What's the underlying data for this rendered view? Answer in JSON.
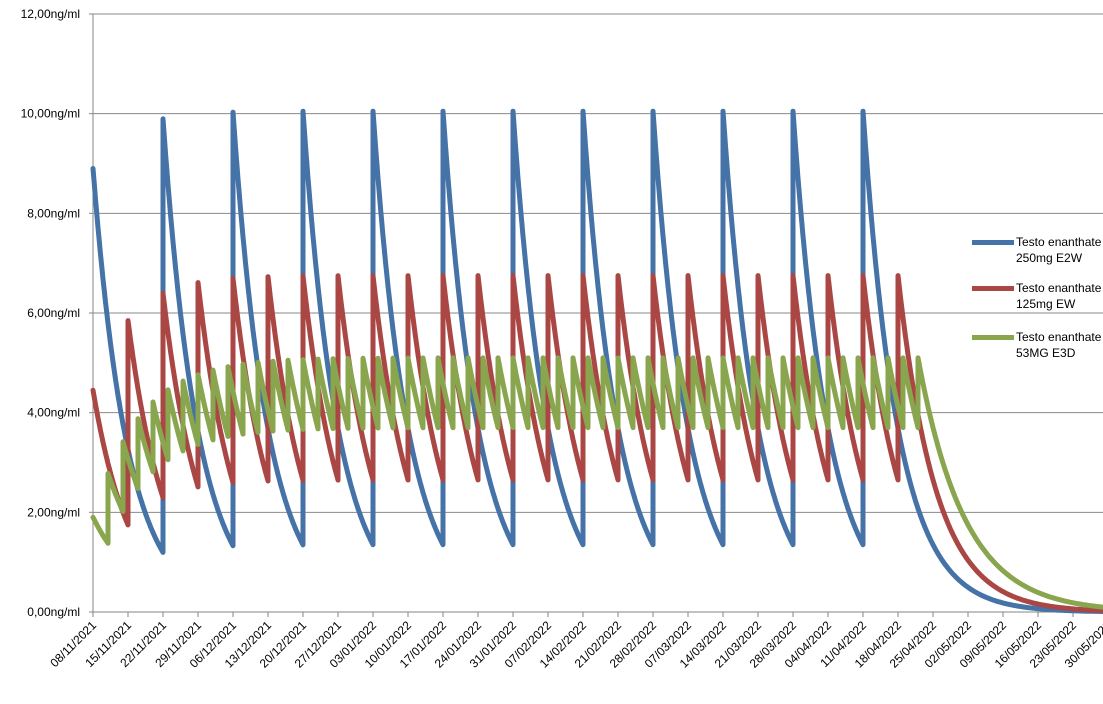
{
  "chart_data": {
    "type": "line",
    "title": "",
    "xlabel": "",
    "ylabel": "",
    "ylim": [
      0,
      12
    ],
    "y_ticks": [
      "0,00ng/ml",
      "2,00ng/ml",
      "4,00ng/ml",
      "6,00ng/ml",
      "8,00ng/ml",
      "10,00ng/ml",
      "12,00ng/ml"
    ],
    "y_tick_values": [
      0,
      2,
      4,
      6,
      8,
      10,
      12
    ],
    "x_range_days": [
      0,
      203
    ],
    "x_ticks": [
      "08/11/2021",
      "15/11/2021",
      "22/11/2021",
      "29/11/2021",
      "06/12/2021",
      "13/12/2021",
      "20/12/2021",
      "27/12/2021",
      "03/01/2022",
      "10/01/2022",
      "17/01/2022",
      "24/01/2022",
      "31/01/2022",
      "07/02/2022",
      "14/02/2022",
      "21/02/2022",
      "28/02/2022",
      "07/03/2022",
      "14/03/2022",
      "21/03/2022",
      "28/03/2022",
      "04/04/2022",
      "11/04/2022",
      "18/04/2022",
      "25/04/2022",
      "02/05/2022",
      "09/05/2022",
      "16/05/2022",
      "23/05/2022",
      "30/05/2022"
    ],
    "grid": "horizontal",
    "legend_position": "right",
    "series": [
      {
        "name": "Testo enanthate 250mg E2W",
        "legend_lines": [
          "Testo enanthate",
          "250mg E2W"
        ],
        "color": "#4572A7",
        "interval_days": 14,
        "last_dose_day": 154,
        "first_value": 8.9,
        "dose_increment": 8.7,
        "steady_peak": 10.05,
        "steady_trough": 1.35
      },
      {
        "name": "Testo enanthate 125mg EW",
        "legend_lines": [
          "Testo enanthate",
          "125mg EW"
        ],
        "color": "#AA4643",
        "interval_days": 7,
        "last_dose_day": 161,
        "first_value": 4.45,
        "dose_increment": 4.1,
        "steady_peak": 6.75,
        "steady_trough": 2.65
      },
      {
        "name": "Testo enanthate 53MG E3D",
        "legend_lines": [
          "Testo enanthate",
          "53MG E3D"
        ],
        "color": "#89A54E",
        "interval_days": 3,
        "last_dose_day": 165,
        "first_value": 1.9,
        "dose_increment": 1.4,
        "steady_peak": 5.1,
        "steady_trough": 3.7
      }
    ]
  }
}
